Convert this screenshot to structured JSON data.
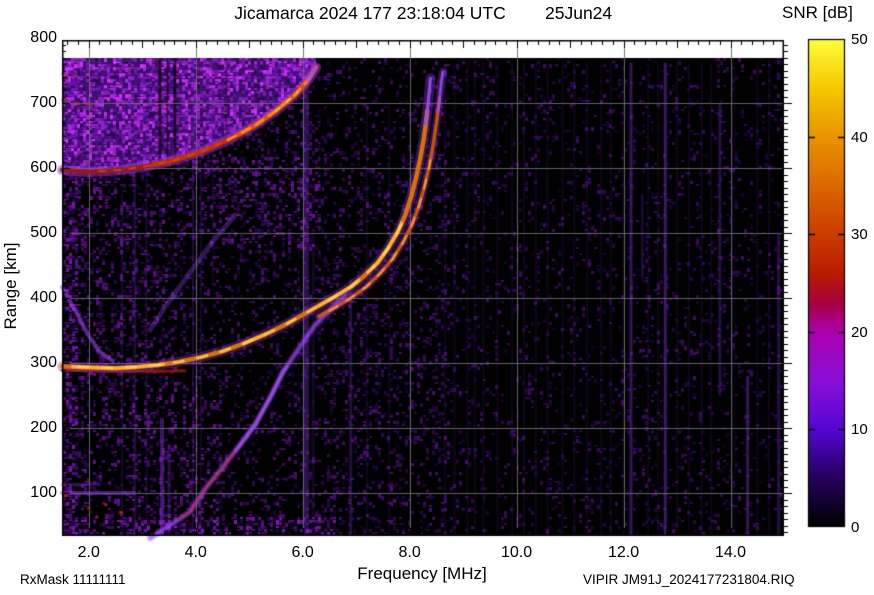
{
  "header": {
    "title": "Jicamarca 2024 177 23:18:04 UTC",
    "date": "25Jun24"
  },
  "footer": {
    "rx_mask": "RxMask 11111111",
    "file_name": "VIPIR  JM91J_2024177231804.RIQ"
  },
  "chart_data": {
    "type": "heatmap",
    "title": "Jicamarca 2024 177 23:18:04 UTC  25Jun24",
    "xlabel": "Frequency [MHz]",
    "ylabel": "Range [km]",
    "xlim": [
      1.5,
      15.0
    ],
    "ylim": [
      30,
      800
    ],
    "grid": true,
    "xticks": [
      2,
      4,
      6,
      8,
      10,
      12,
      14
    ],
    "xtick_labels": [
      "2.0",
      "4.0",
      "6.0",
      "8.0",
      "10.0",
      "12.0",
      "14.0"
    ],
    "yticks": [
      100,
      200,
      300,
      400,
      500,
      600,
      700,
      800
    ],
    "ytick_labels": [
      "100",
      "200",
      "300",
      "400",
      "500",
      "600",
      "700",
      "800"
    ],
    "colorbar": {
      "label": "SNR [dB]",
      "min": 0,
      "max": 50,
      "ticks": [
        0,
        10,
        20,
        30,
        40,
        50
      ],
      "tick_labels": [
        "0",
        "10",
        "20",
        "30",
        "40",
        "50"
      ],
      "stops": [
        {
          "v": 0.0,
          "c": "#000000"
        },
        {
          "v": 0.1,
          "c": "#26005a"
        },
        {
          "v": 0.2,
          "c": "#5406d2"
        },
        {
          "v": 0.3,
          "c": "#8a10d8"
        },
        {
          "v": 0.4,
          "c": "#ad00ad"
        },
        {
          "v": 0.46,
          "c": "#a8003c"
        },
        {
          "v": 0.52,
          "c": "#b81c00"
        },
        {
          "v": 0.6,
          "c": "#cc3c00"
        },
        {
          "v": 0.7,
          "c": "#dc6800"
        },
        {
          "v": 0.8,
          "c": "#ea9400"
        },
        {
          "v": 0.9,
          "c": "#f6c800"
        },
        {
          "v": 1.0,
          "c": "#ffff3c"
        }
      ]
    },
    "series": {
      "o_trace": [
        [
          1.5,
          295
        ],
        [
          1.8,
          294
        ],
        [
          2.1,
          293
        ],
        [
          2.5,
          292
        ],
        [
          2.9,
          294
        ],
        [
          3.3,
          297
        ],
        [
          3.7,
          302
        ],
        [
          4.1,
          309
        ],
        [
          4.5,
          318
        ],
        [
          4.9,
          330
        ],
        [
          5.3,
          344
        ],
        [
          5.7,
          360
        ],
        [
          6.0,
          374
        ],
        [
          6.3,
          388
        ],
        [
          6.6,
          402
        ],
        [
          6.9,
          417
        ],
        [
          7.15,
          434
        ],
        [
          7.4,
          454
        ],
        [
          7.6,
          477
        ],
        [
          7.78,
          502
        ],
        [
          7.92,
          528
        ],
        [
          8.03,
          556
        ],
        [
          8.12,
          585
        ],
        [
          8.2,
          615
        ],
        [
          8.27,
          648
        ],
        [
          8.32,
          680
        ],
        [
          8.36,
          712
        ],
        [
          8.39,
          738
        ]
      ],
      "o_bright_ranges": [
        [
          1.7,
          3.4
        ],
        [
          4.9,
          5.3
        ],
        [
          6.3,
          7.05
        ],
        [
          7.3,
          7.85
        ]
      ],
      "x_trace": [
        [
          6.3,
          372
        ],
        [
          6.6,
          385
        ],
        [
          6.9,
          400
        ],
        [
          7.2,
          418
        ],
        [
          7.45,
          438
        ],
        [
          7.68,
          460
        ],
        [
          7.88,
          486
        ],
        [
          8.05,
          514
        ],
        [
          8.18,
          543
        ],
        [
          8.28,
          572
        ],
        [
          8.37,
          604
        ],
        [
          8.44,
          636
        ],
        [
          8.5,
          668
        ],
        [
          8.55,
          700
        ],
        [
          8.59,
          730
        ],
        [
          8.62,
          748
        ]
      ],
      "spread_f_arc": [
        [
          1.5,
          597
        ],
        [
          2.0,
          594
        ],
        [
          2.6,
          597
        ],
        [
          3.1,
          603
        ],
        [
          3.6,
          612
        ],
        [
          4.1,
          625
        ],
        [
          4.6,
          643
        ],
        [
          5.1,
          665
        ],
        [
          5.5,
          688
        ],
        [
          5.85,
          712
        ],
        [
          6.1,
          735
        ],
        [
          6.25,
          755
        ]
      ],
      "blob_top_km": 769,
      "second_hop": [
        [
          3.15,
          31
        ],
        [
          3.61,
          55
        ],
        [
          3.89,
          71
        ],
        [
          4.21,
          110
        ],
        [
          4.51,
          140
        ],
        [
          4.81,
          172
        ],
        [
          5.11,
          205
        ],
        [
          5.4,
          248
        ],
        [
          5.63,
          286
        ],
        [
          5.95,
          325
        ],
        [
          6.23,
          358
        ],
        [
          6.55,
          385
        ],
        [
          6.79,
          404
        ]
      ],
      "second_hop_red_range": [
        3.7,
        4.75
      ],
      "second_hop_bright_range": [
        4.75,
        5.7
      ],
      "oblique_faint": [
        [
          3.15,
          351
        ],
        [
          3.5,
          395
        ],
        [
          3.9,
          440
        ],
        [
          4.3,
          485
        ],
        [
          4.74,
          528
        ]
      ],
      "low_freq_tail": [
        [
          1.5,
          417
        ],
        [
          1.74,
          382
        ],
        [
          1.99,
          343
        ],
        [
          2.21,
          317
        ],
        [
          2.45,
          303
        ]
      ],
      "base_red_line": [
        [
          1.5,
          289
        ],
        [
          2.3,
          288
        ],
        [
          3.2,
          287
        ],
        [
          3.8,
          288
        ]
      ],
      "e_band": [
        [
          1.5,
          100
        ],
        [
          2.85,
          100
        ]
      ],
      "e_band2": [
        [
          1.5,
          113
        ],
        [
          2.2,
          113
        ]
      ],
      "es_red_dots": [
        [
          2.0,
          77
        ],
        [
          2.15,
          63
        ],
        [
          2.32,
          82
        ],
        [
          1.56,
          96
        ],
        [
          2.6,
          70
        ]
      ],
      "blob_upper_dashes": [
        [
          [
            1.5,
            705
          ],
          [
            1.8,
            700
          ],
          [
            2.1,
            697
          ]
        ],
        [
          [
            1.5,
            745
          ],
          [
            1.78,
            742
          ]
        ]
      ]
    },
    "rfi_bright_streaks": [
      [
        2.62,
        2,
        0.18,
        34,
        560
      ],
      [
        2.86,
        3,
        0.22,
        34,
        600
      ],
      [
        3.08,
        2,
        0.18,
        34,
        600
      ],
      [
        3.37,
        4,
        0.45,
        34,
        215
      ],
      [
        3.5,
        3,
        0.3,
        34,
        175
      ],
      [
        3.95,
        2,
        0.22,
        34,
        760
      ],
      [
        4.1,
        2,
        0.15,
        34,
        620
      ],
      [
        4.32,
        2,
        0.15,
        420,
        760
      ],
      [
        6.06,
        6,
        0.35,
        34,
        769
      ],
      [
        6.2,
        2,
        0.2,
        34,
        500
      ],
      [
        6.9,
        3,
        0.28,
        34,
        430
      ],
      [
        7.2,
        2,
        0.14,
        34,
        700
      ],
      [
        7.62,
        2,
        0.12,
        34,
        700
      ],
      [
        8.0,
        2,
        0.1,
        34,
        700
      ],
      [
        8.66,
        2,
        0.12,
        34,
        762
      ],
      [
        8.84,
        2,
        0.12,
        34,
        762
      ],
      [
        9.08,
        2,
        0.12,
        34,
        762
      ],
      [
        9.22,
        2,
        0.12,
        34,
        762
      ],
      [
        9.38,
        2,
        0.12,
        34,
        762
      ],
      [
        9.64,
        2,
        0.12,
        34,
        762
      ],
      [
        9.92,
        2,
        0.12,
        34,
        762
      ],
      [
        10.14,
        2,
        0.12,
        34,
        762
      ],
      [
        10.36,
        2,
        0.12,
        34,
        762
      ],
      [
        10.58,
        2,
        0.12,
        34,
        762
      ],
      [
        10.86,
        2,
        0.12,
        34,
        762
      ],
      [
        11.08,
        2,
        0.12,
        34,
        762
      ],
      [
        11.32,
        2,
        0.12,
        34,
        762
      ],
      [
        11.58,
        2,
        0.12,
        34,
        762
      ],
      [
        11.76,
        2,
        0.12,
        34,
        762
      ],
      [
        12.0,
        2,
        0.12,
        34,
        762
      ],
      [
        12.46,
        2,
        0.12,
        34,
        762
      ],
      [
        12.64,
        2,
        0.12,
        34,
        762
      ],
      [
        13.0,
        2,
        0.12,
        34,
        762
      ],
      [
        13.22,
        2,
        0.12,
        34,
        762
      ],
      [
        13.46,
        2,
        0.12,
        34,
        762
      ],
      [
        13.64,
        2,
        0.12,
        34,
        762
      ],
      [
        14.06,
        2,
        0.12,
        34,
        762
      ],
      [
        14.5,
        2,
        0.12,
        34,
        762
      ],
      [
        14.72,
        2,
        0.12,
        34,
        762
      ],
      [
        12.14,
        3,
        0.4,
        34,
        762
      ],
      [
        12.78,
        3,
        0.45,
        34,
        762
      ],
      [
        12.35,
        2,
        0.28,
        430,
        560
      ],
      [
        13.8,
        3,
        0.3,
        250,
        700
      ],
      [
        14.32,
        3,
        0.42,
        34,
        280
      ],
      [
        14.9,
        3,
        0.3,
        34,
        500
      ]
    ],
    "rfi_dark_streaks": [
      [
        3.33,
        3,
        0.7,
        540,
        769
      ],
      [
        3.47,
        2,
        0.55,
        540,
        769
      ],
      [
        3.61,
        3,
        0.7,
        540,
        769
      ],
      [
        4.57,
        3,
        0.3,
        600,
        769
      ],
      [
        6.35,
        3,
        0.5,
        560,
        769
      ]
    ],
    "noise_zones": [
      [
        1.5,
        8.75,
        34,
        769,
        0.08,
        0.5
      ],
      [
        1.5,
        1.78,
        34,
        769,
        0.3,
        0.75
      ],
      [
        1.5,
        6.3,
        480,
        620,
        0.16,
        0.65
      ],
      [
        1.5,
        6.6,
        34,
        64,
        0.28,
        0.8
      ],
      [
        1.8,
        4.5,
        64,
        250,
        0.1,
        0.65
      ],
      [
        4.2,
        6.3,
        560,
        705,
        0.08,
        0.55
      ],
      [
        1.5,
        3.6,
        250,
        480,
        0.1,
        0.6
      ],
      [
        6.3,
        8.75,
        200,
        500,
        0.04,
        0.5
      ]
    ],
    "noise_base_density": 0.1
  }
}
